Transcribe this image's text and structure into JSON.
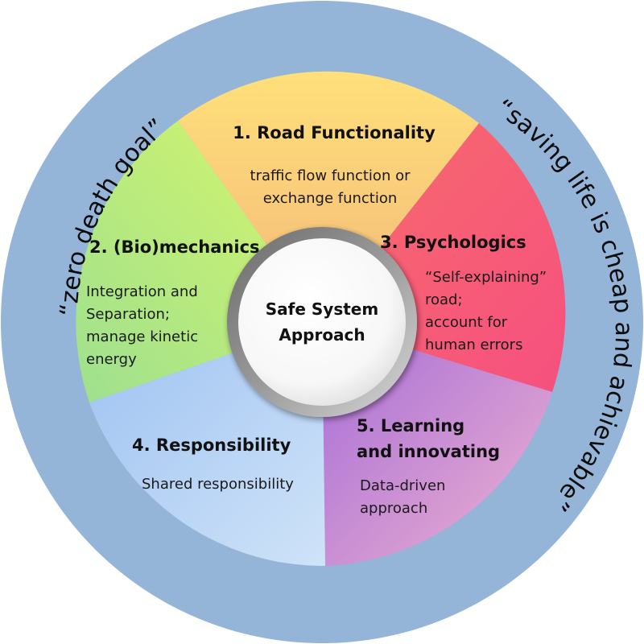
{
  "outer_ring": {
    "left_slogan": "“zero death goal”",
    "right_slogan": "“saving life is cheap and achievable”",
    "color": "#94b4d8"
  },
  "center": {
    "line1": "Safe System",
    "line2": "Approach"
  },
  "segments": [
    {
      "id": "road-functionality",
      "title_lines": [
        "1. Road Functionality"
      ],
      "body_lines": [
        "traffic flow function or",
        "exchange function"
      ],
      "color_from": "#ffe07a",
      "color_to": "#f3b97a"
    },
    {
      "id": "psychologics",
      "title_lines": [
        "3. Psychologics"
      ],
      "body_lines": [
        "“Self-explaining”",
        "road;",
        "account for",
        "human errors"
      ],
      "color_from": "#f86c6c",
      "color_to": "#f6507f"
    },
    {
      "id": "learning-innovating",
      "title_lines": [
        "5. Learning",
        "and innovating"
      ],
      "body_lines": [
        "Data-driven",
        "approach"
      ],
      "color_from": "#a56cd8",
      "color_to": "#eeb2cf"
    },
    {
      "id": "responsibility",
      "title_lines": [
        "4. Responsibility"
      ],
      "body_lines": [
        "Shared responsibility"
      ],
      "color_from": "#9ec2f2",
      "color_to": "#cfe3f8"
    },
    {
      "id": "biomechanics",
      "title_lines": [
        "2. (Bio)mechanics"
      ],
      "body_lines": [
        "Integration and",
        "Separation;",
        "manage kinetic",
        "energy"
      ],
      "color_from": "#d7f66a",
      "color_to": "#9ee08f"
    }
  ]
}
